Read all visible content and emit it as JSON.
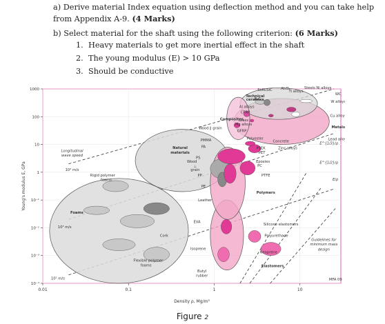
{
  "questions": {
    "a": {
      "prefix": "a)",
      "text": "Derive material Index equation using deflection method and you can take help from Appendix A-9.",
      "marks": "(4 Marks)"
    },
    "b": {
      "prefix": "b)",
      "text": "Select material for the shaft using the following criterion:",
      "marks": "(6 Marks)"
    },
    "criteria": [
      {
        "num": "1.",
        "text": "Heavy materials to get more inertial effect in the shaft"
      },
      {
        "num": "2.",
        "text": "The young modulus  (E) > 10 GPa"
      },
      {
        "num": "3.",
        "text": "Should be conductive"
      }
    ]
  },
  "figure_caption": {
    "text": "Figure",
    "num": "2"
  },
  "chart_data": {
    "type": "scatter",
    "title": "",
    "xlabel": "Density ρ, Mg/m³",
    "ylabel": "Young's modulus E, GPa",
    "x_scale": "log",
    "y_scale": "log",
    "xlim": [
      0.01,
      30
    ],
    "ylim": [
      0.0001,
      1000
    ],
    "x_ticks": [
      {
        "v": 0.01,
        "label": "0.01"
      },
      {
        "v": 0.1,
        "label": "0.1"
      },
      {
        "v": 1,
        "label": "1"
      },
      {
        "v": 10,
        "label": "10"
      }
    ],
    "y_ticks": [
      {
        "v": 0.0001,
        "label": "10⁻⁴"
      },
      {
        "v": 0.001,
        "label": "10⁻³"
      },
      {
        "v": 0.01,
        "label": "10⁻²"
      },
      {
        "v": 0.1,
        "label": "10⁻¹"
      },
      {
        "v": 1,
        "label": "1"
      },
      {
        "v": 10,
        "label": "10"
      },
      {
        "v": 100,
        "label": "100"
      },
      {
        "v": 1000,
        "label": "1000"
      }
    ],
    "grid": true,
    "colors": {
      "ceramics": "#d8d8d8",
      "metals": "#f0a0c4",
      "polymers": "#f2a8c8",
      "foams": "#dcdcdc",
      "natural": "#d9d9d9",
      "pink_fill": "#e03a96",
      "dark": "#888888"
    },
    "families": [
      {
        "name": "Technical ceramics",
        "x": [
          2.0,
          16.0
        ],
        "y": [
          80,
          1100
        ],
        "shade": "grey"
      },
      {
        "name": "Metals",
        "x": [
          1.7,
          22.0
        ],
        "y": [
          10,
          450
        ],
        "shade": "pink"
      },
      {
        "name": "Composites",
        "x": [
          1.4,
          2.6
        ],
        "y": [
          15,
          500
        ],
        "shade": "pink"
      },
      {
        "name": "Natural materials",
        "x": [
          0.12,
          1.5
        ],
        "y": [
          0.2,
          35
        ],
        "shade": "grey"
      },
      {
        "name": "Polymers",
        "x": [
          0.9,
          2.3
        ],
        "y": [
          0.02,
          8
        ],
        "shade": "pink"
      },
      {
        "name": "Elastomers",
        "x": [
          0.9,
          2.2
        ],
        "y": [
          0.0003,
          0.1
        ],
        "shade": "pink"
      },
      {
        "name": "Foams",
        "x": [
          0.012,
          0.5
        ],
        "y": [
          0.0001,
          0.6
        ],
        "shade": "grey"
      }
    ],
    "labels": [
      {
        "text": "Technical",
        "x": 3.0,
        "y": 500
      },
      {
        "text": "ceramics",
        "x": 3.0,
        "y": 380
      },
      {
        "text": "Si₃N₄",
        "x": 3.6,
        "y": 850
      },
      {
        "text": "SiC",
        "x": 4.4,
        "y": 850
      },
      {
        "text": "Al₂O₃",
        "x": 6.8,
        "y": 950
      },
      {
        "text": "Steels",
        "x": 13,
        "y": 1000
      },
      {
        "text": "Ni alloys",
        "x": 19,
        "y": 1000
      },
      {
        "text": "Ti alloys",
        "x": 9,
        "y": 750
      },
      {
        "text": "WC",
        "x": 28,
        "y": 600
      },
      {
        "text": "B₄C",
        "x": 3.2,
        "y": 400
      },
      {
        "text": "W alloys",
        "x": 28,
        "y": 320
      },
      {
        "text": "Al alloys",
        "x": 2.4,
        "y": 210
      },
      {
        "text": "CFRP",
        "x": 2.3,
        "y": 130
      },
      {
        "text": "Composites",
        "x": 1.6,
        "y": 75
      },
      {
        "text": "Cu alloys",
        "x": 28,
        "y": 100
      },
      {
        "text": "Glass",
        "x": 2.2,
        "y": 68
      },
      {
        "text": "Mg alloys",
        "x": 2.2,
        "y": 48
      },
      {
        "text": "Metals",
        "x": 28,
        "y": 38
      },
      {
        "text": "Wood ∥ grain",
        "x": 0.9,
        "y": 35
      },
      {
        "text": "GFRP",
        "x": 2.1,
        "y": 28
      },
      {
        "text": "Polyester",
        "x": 3.0,
        "y": 15
      },
      {
        "text": "Concrete",
        "x": 6.0,
        "y": 12
      },
      {
        "text": "Lead alloys",
        "x": 28,
        "y": 14
      },
      {
        "text": "Zinc alloys",
        "x": 7.2,
        "y": 6.8
      },
      {
        "text": "PMMA",
        "x": 0.8,
        "y": 13
      },
      {
        "text": "PA",
        "x": 0.75,
        "y": 7.5
      },
      {
        "text": "Natural",
        "x": 0.4,
        "y": 7
      },
      {
        "text": "materials",
        "x": 0.4,
        "y": 4.6
      },
      {
        "text": "PEEK",
        "x": 3.5,
        "y": 6.8
      },
      {
        "text": "PET",
        "x": 3.6,
        "y": 4.7
      },
      {
        "text": "Longitudinal",
        "x": 0.022,
        "y": 5.4
      },
      {
        "text": "wave speed",
        "x": 0.022,
        "y": 3.7
      },
      {
        "text": "PS",
        "x": 0.65,
        "y": 3.0
      },
      {
        "text": "Wood",
        "x": 0.55,
        "y": 2.2
      },
      {
        "text": "⊥",
        "x": 0.6,
        "y": 1.5
      },
      {
        "text": "grain",
        "x": 0.6,
        "y": 1.1
      },
      {
        "text": "Epoxies",
        "x": 3.7,
        "y": 2.2
      },
      {
        "text": "PC",
        "x": 3.4,
        "y": 1.55
      },
      {
        "text": "10⁴ m/s",
        "x": 0.022,
        "y": 1.1
      },
      {
        "text": "PP",
        "x": 0.68,
        "y": 0.7
      },
      {
        "text": "PE",
        "x": 0.75,
        "y": 0.28
      },
      {
        "text": "PTFE",
        "x": 4.0,
        "y": 0.7
      },
      {
        "text": "Rigid polymer",
        "x": 0.05,
        "y": 0.7
      },
      {
        "text": "foams",
        "x": 0.055,
        "y": 0.48
      },
      {
        "text": "Leather",
        "x": 0.78,
        "y": 0.09
      },
      {
        "text": "Polymers",
        "x": 4.0,
        "y": 0.17
      },
      {
        "text": "Foams",
        "x": 0.025,
        "y": 0.032
      },
      {
        "text": "EVA",
        "x": 0.63,
        "y": 0.015
      },
      {
        "text": "10³ m/s",
        "x": 0.018,
        "y": 0.0096
      },
      {
        "text": "Silicone elastomers",
        "x": 6.0,
        "y": 0.012
      },
      {
        "text": "Cork",
        "x": 0.26,
        "y": 0.0048
      },
      {
        "text": "Polyurethane",
        "x": 5.3,
        "y": 0.0048
      },
      {
        "text": "Guidelines for",
        "x": 19,
        "y": 0.0034
      },
      {
        "text": "minimum mass",
        "x": 19,
        "y": 0.0023
      },
      {
        "text": "design",
        "x": 19,
        "y": 0.0015
      },
      {
        "text": "Isoprene",
        "x": 0.65,
        "y": 0.0016
      },
      {
        "text": "Neoprene",
        "x": 4.3,
        "y": 0.0012
      },
      {
        "text": "Flexible polymer",
        "x": 0.17,
        "y": 0.0006
      },
      {
        "text": "foams",
        "x": 0.16,
        "y": 0.0004
      },
      {
        "text": "Elastomers",
        "x": 4.8,
        "y": 0.00038
      },
      {
        "text": "Butyl",
        "x": 0.72,
        "y": 0.00025
      },
      {
        "text": "rubber",
        "x": 0.72,
        "y": 0.00017
      },
      {
        "text": "10² m/s",
        "x": 0.015,
        "y": 0.000135
      },
      {
        "text": "MFA 09",
        "x": 26,
        "y": 0.000125
      }
    ],
    "guide_labels": [
      "E^{1/3}/ρ",
      "E^{1/2}/ρ",
      "E/ρ"
    ]
  }
}
